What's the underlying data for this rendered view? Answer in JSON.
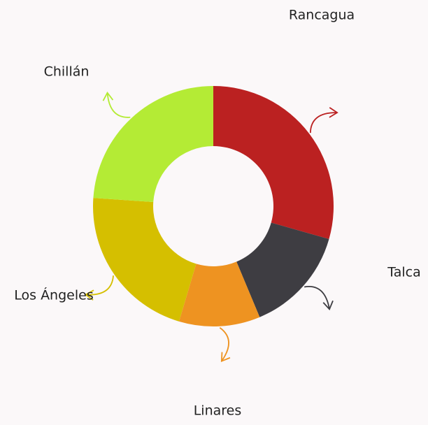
{
  "chart_data": {
    "type": "donut",
    "categories": [
      "Rancagua",
      "Talca",
      "Linares",
      "Los Ángeles",
      "Chillán"
    ],
    "values": [
      29.4,
      14.3,
      10.9,
      21.5,
      23.9
    ],
    "colors": [
      "#bb2121",
      "#3e3d42",
      "#ee9321",
      "#d5bf00",
      "#b4eb35"
    ]
  }
}
